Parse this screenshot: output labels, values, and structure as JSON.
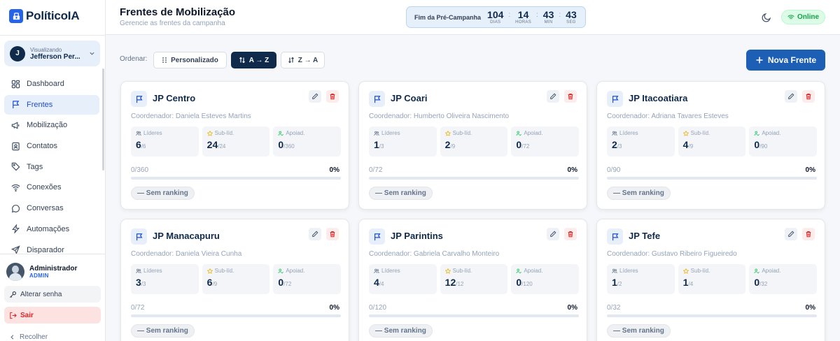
{
  "sidebar": {
    "brand": "PolíticoIA",
    "viewing_label": "Visualizando",
    "viewing_user": "Jefferson Per...",
    "avatar_initial": "J",
    "nav": [
      {
        "label": "Dashboard",
        "icon": "dashboard-icon"
      },
      {
        "label": "Frentes",
        "icon": "flag-icon",
        "active": true
      },
      {
        "label": "Mobilização",
        "icon": "megaphone-icon"
      },
      {
        "label": "Contatos",
        "icon": "contacts-icon"
      },
      {
        "label": "Tags",
        "icon": "tag-icon"
      },
      {
        "label": "Conexões",
        "icon": "wifi-icon"
      },
      {
        "label": "Conversas",
        "icon": "chat-icon"
      },
      {
        "label": "Automações",
        "icon": "bolt-icon"
      },
      {
        "label": "Disparador",
        "icon": "send-icon"
      }
    ],
    "admin_name": "Administrador",
    "admin_role": "ADMIN",
    "change_password": "Alterar senha",
    "logout": "Sair",
    "collapse": "Recolher"
  },
  "header": {
    "title": "Frentes de Mobilização",
    "subtitle": "Gerencie as frentes da campanha",
    "countdown": {
      "label": "Fim da Pré-Campanha",
      "days": "104",
      "days_label": "DIAS",
      "hours": "14",
      "hours_label": "HORAS",
      "minutes": "43",
      "minutes_label": "MIN",
      "seconds": "43",
      "seconds_label": "SEG"
    },
    "status": "Online"
  },
  "toolbar": {
    "sort_label": "Ordenar:",
    "sort_custom": "Personalizado",
    "sort_az": "A → Z",
    "sort_za": "Z → A",
    "new_front": "Nova Frente"
  },
  "labels": {
    "leaders": "Líderes",
    "subleaders": "Sub-líd.",
    "supporters": "Apoiad.",
    "no_ranking": "— Sem ranking"
  },
  "cards": [
    {
      "name": "JP Centro",
      "coordinator": "Coordenador: Daniela Esteves Martins",
      "leaders": "6",
      "leaders_max": "/6",
      "sub": "24",
      "sub_max": "/24",
      "sup": "0",
      "sup_max": "/360",
      "progress": "0/360",
      "pct": "0%",
      "fill": 0
    },
    {
      "name": "JP Coari",
      "coordinator": "Coordenador: Humberto Oliveira Nascimento",
      "leaders": "1",
      "leaders_max": "/3",
      "sub": "2",
      "sub_max": "/9",
      "sup": "0",
      "sup_max": "/72",
      "progress": "0/72",
      "pct": "0%",
      "fill": 0
    },
    {
      "name": "JP Itacoatiara",
      "coordinator": "Coordenador: Adriana Tavares Esteves",
      "leaders": "2",
      "leaders_max": "/3",
      "sub": "4",
      "sub_max": "/9",
      "sup": "0",
      "sup_max": "/90",
      "progress": "0/90",
      "pct": "0%",
      "fill": 0
    },
    {
      "name": "JP Manacapuru",
      "coordinator": "Coordenador: Daniela Vieira Cunha",
      "leaders": "3",
      "leaders_max": "/3",
      "sub": "6",
      "sub_max": "/9",
      "sup": "0",
      "sup_max": "/72",
      "progress": "0/72",
      "pct": "0%",
      "fill": 0
    },
    {
      "name": "JP Parintins",
      "coordinator": "Coordenador: Gabriela Carvalho Monteiro",
      "leaders": "4",
      "leaders_max": "/4",
      "sub": "12",
      "sub_max": "/12",
      "sup": "0",
      "sup_max": "/120",
      "progress": "0/120",
      "pct": "0%",
      "fill": 0
    },
    {
      "name": "JP Tefe",
      "coordinator": "Coordenador: Gustavo Ribeiro Figueiredo",
      "leaders": "1",
      "leaders_max": "/2",
      "sub": "1",
      "sub_max": "/4",
      "sup": "0",
      "sup_max": "/32",
      "progress": "0/32",
      "pct": "0%",
      "fill": 0
    }
  ]
}
